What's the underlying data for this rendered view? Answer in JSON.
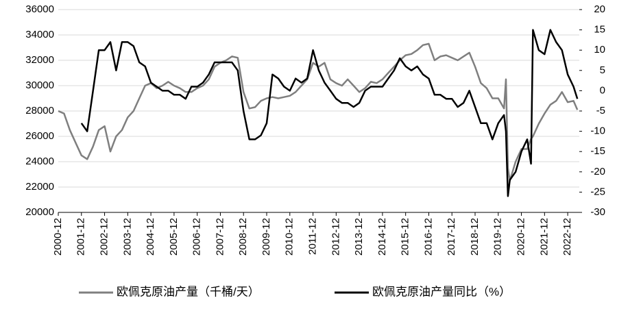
{
  "chart_data": {
    "type": "line",
    "x": [
      "2000-12",
      "2001-03",
      "2001-06",
      "2001-09",
      "2001-12",
      "2002-03",
      "2002-06",
      "2002-09",
      "2002-12",
      "2003-03",
      "2003-06",
      "2003-09",
      "2003-12",
      "2004-03",
      "2004-06",
      "2004-09",
      "2004-12",
      "2005-03",
      "2005-06",
      "2005-09",
      "2005-12",
      "2006-03",
      "2006-06",
      "2006-09",
      "2006-12",
      "2007-03",
      "2007-06",
      "2007-09",
      "2007-12",
      "2008-03",
      "2008-06",
      "2008-09",
      "2008-12",
      "2009-03",
      "2009-06",
      "2009-09",
      "2009-12",
      "2010-03",
      "2010-06",
      "2010-09",
      "2010-12",
      "2011-03",
      "2011-06",
      "2011-09",
      "2011-12",
      "2012-03",
      "2012-06",
      "2012-09",
      "2012-12",
      "2013-03",
      "2013-06",
      "2013-09",
      "2013-12",
      "2014-03",
      "2014-06",
      "2014-09",
      "2014-12",
      "2015-03",
      "2015-06",
      "2015-09",
      "2015-12",
      "2016-03",
      "2016-06",
      "2016-09",
      "2016-12",
      "2017-03",
      "2017-06",
      "2017-09",
      "2017-12",
      "2018-03",
      "2018-06",
      "2018-09",
      "2018-12",
      "2019-03",
      "2019-06",
      "2019-09",
      "2019-12",
      "2020-03",
      "2020-04",
      "2020-05",
      "2020-06",
      "2020-09",
      "2020-12",
      "2021-03",
      "2021-05",
      "2021-06",
      "2021-09",
      "2021-12",
      "2022-03",
      "2022-06",
      "2022-09",
      "2022-12",
      "2023-03",
      "2023-05"
    ],
    "series": [
      {
        "name": "欧佩克原油产量（千桶/天）",
        "color": "#7f7f7f",
        "axis": "y",
        "values": [
          28000,
          27800,
          26500,
          25500,
          24500,
          24200,
          25200,
          26500,
          26800,
          24800,
          26000,
          26500,
          27500,
          28000,
          29000,
          30000,
          30200,
          29800,
          30000,
          30300,
          30000,
          29800,
          29500,
          29500,
          29800,
          30000,
          30500,
          31500,
          31800,
          32000,
          32300,
          32200,
          29500,
          28200,
          28300,
          28800,
          29000,
          29100,
          29000,
          29100,
          29200,
          29500,
          30000,
          30500,
          31800,
          31500,
          31800,
          30500,
          30200,
          30000,
          30500,
          30000,
          29500,
          29800,
          30300,
          30200,
          30500,
          31000,
          31500,
          32000,
          32400,
          32500,
          32800,
          33200,
          33300,
          32000,
          32300,
          32400,
          32200,
          32000,
          32300,
          32600,
          31500,
          30200,
          29800,
          29000,
          29000,
          28200,
          30500,
          23500,
          22500,
          24000,
          25000,
          25000,
          25800,
          26000,
          27000,
          27800,
          28500,
          28800,
          29500,
          28700,
          28800,
          28100
        ]
      },
      {
        "name": "欧佩克原油产量同比（%）",
        "color": "#000000",
        "axis": "y2",
        "values": [
          null,
          null,
          null,
          null,
          -8,
          -10,
          0,
          10,
          10,
          12,
          5,
          12,
          12,
          11,
          7,
          6,
          2,
          1,
          0,
          0,
          -1,
          -1,
          -2,
          1,
          1,
          2,
          4,
          7,
          7,
          7,
          7,
          5,
          -5,
          -12,
          -12,
          -11,
          -8,
          4,
          3,
          1,
          0,
          3,
          2,
          3,
          10,
          5,
          2,
          0,
          -2,
          -3,
          -3,
          -4,
          -3,
          0,
          1,
          1,
          1,
          3,
          5,
          8,
          6,
          5,
          6,
          4,
          3,
          -1,
          -1,
          -2,
          -2,
          -4,
          -3,
          0,
          -4,
          -8,
          -8,
          -12,
          -8,
          -6,
          -10,
          -26,
          -22,
          -20,
          -15,
          -12,
          -18,
          15,
          10,
          9,
          15,
          12,
          10,
          4,
          1,
          -2
        ]
      }
    ],
    "xlim": [
      "2000-12",
      "2023-06"
    ],
    "xticks": [
      "2000-12",
      "2001-12",
      "2002-12",
      "2003-12",
      "2004-12",
      "2005-12",
      "2006-12",
      "2007-12",
      "2008-12",
      "2009-12",
      "2010-12",
      "2011-12",
      "2012-12",
      "2013-12",
      "2014-12",
      "2015-12",
      "2016-12",
      "2017-12",
      "2018-12",
      "2019-12",
      "2020-12",
      "2021-12",
      "2022-12"
    ],
    "ylim": [
      20000,
      36000
    ],
    "yticks": [
      20000,
      22000,
      24000,
      26000,
      28000,
      30000,
      32000,
      34000,
      36000
    ],
    "y2lim": [
      -30,
      20
    ],
    "y2ticks": [
      -30,
      -25,
      -20,
      -15,
      -10,
      -5,
      0,
      5,
      10,
      15,
      20
    ],
    "grid": true,
    "legend": "bottom"
  }
}
